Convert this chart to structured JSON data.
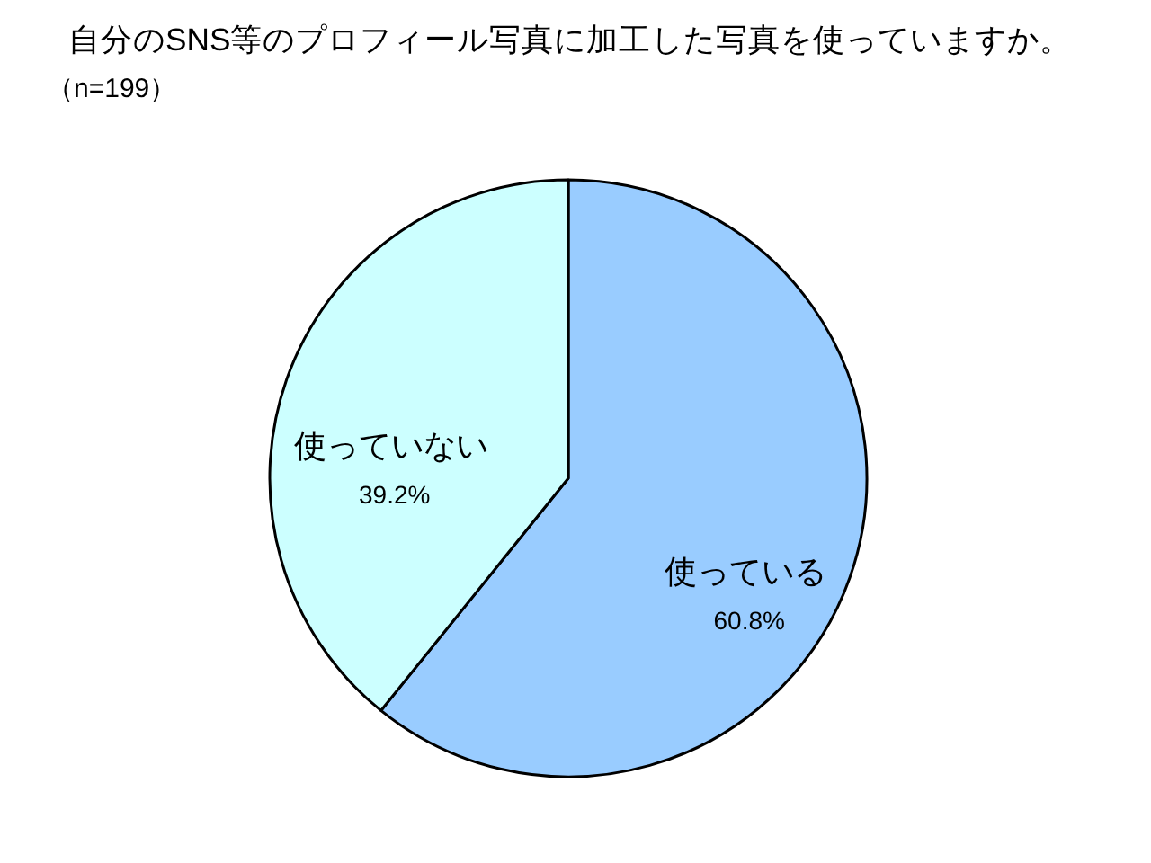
{
  "chart_data": {
    "type": "pie",
    "title": "自分のSNS等のプロフィール写真に加工した写真を使っていますか。",
    "subtitle": "（n=199）",
    "categories": [
      "使っている",
      "使っていない"
    ],
    "values": [
      60.8,
      39.2
    ],
    "colors": [
      "#99ccff",
      "#ccffff"
    ],
    "value_labels": [
      "60.8%",
      "39.2%"
    ],
    "legend": false
  }
}
